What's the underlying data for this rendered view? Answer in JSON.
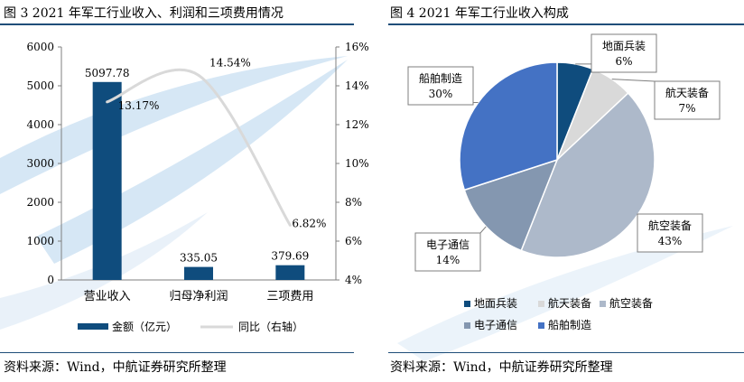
{
  "left_figure": {
    "title": "图 3 2021 年军工行业收入、利润和三项费用情况",
    "source": "资料来源：Wind，中航证券研究所整理"
  },
  "right_figure": {
    "title": "图 4 2021 年军工行业收入构成",
    "source": "资料来源：Wind，中航证券研究所整理"
  },
  "colors": {
    "bar": "#0f4c7d",
    "line": "#d9d9d9",
    "header_rule": "#1f4e79",
    "watermark": "#cfe3f3"
  },
  "chart_data": [
    {
      "type": "bar",
      "categories": [
        "营业收入",
        "归母净利润",
        "三项费用"
      ],
      "series": [
        {
          "name": "金额（亿元）",
          "type": "bar",
          "axis": "left",
          "values": [
            5097.78,
            335.05,
            379.69
          ],
          "data_labels": [
            "5097.78",
            "335.05",
            "379.69"
          ]
        },
        {
          "name": "同比（右轴）",
          "type": "line",
          "axis": "right",
          "values": [
            13.17,
            14.54,
            6.82
          ],
          "data_labels": [
            "13.17%",
            "14.54%",
            "6.82%"
          ]
        }
      ],
      "y_left": {
        "ylim": [
          0,
          6000
        ],
        "ticks": [
          "0",
          "1000",
          "2000",
          "3000",
          "4000",
          "5000",
          "6000"
        ]
      },
      "y_right": {
        "ylim": [
          4,
          16
        ],
        "ticks": [
          "4%",
          "6%",
          "8%",
          "10%",
          "12%",
          "14%",
          "16%"
        ]
      },
      "legend": [
        "金额（亿元）",
        "同比（右轴）"
      ],
      "legend_position": "bottom",
      "grid": false
    },
    {
      "type": "pie",
      "slices": [
        {
          "label": "地面兵装",
          "value": 6,
          "pct_label": "6%",
          "color": "#0f4c7d"
        },
        {
          "label": "航天装备",
          "value": 7,
          "pct_label": "7%",
          "color": "#d9d9d9"
        },
        {
          "label": "航空装备",
          "value": 43,
          "pct_label": "43%",
          "color": "#adb9ca"
        },
        {
          "label": "电子通信",
          "value": 14,
          "pct_label": "14%",
          "color": "#8497b0"
        },
        {
          "label": "船舶制造",
          "value": 30,
          "pct_label": "30%",
          "color": "#4472c4"
        }
      ],
      "legend": [
        "地面兵装",
        "航天装备",
        "航空装备",
        "电子通信",
        "船舶制造"
      ],
      "legend_position": "bottom"
    }
  ]
}
